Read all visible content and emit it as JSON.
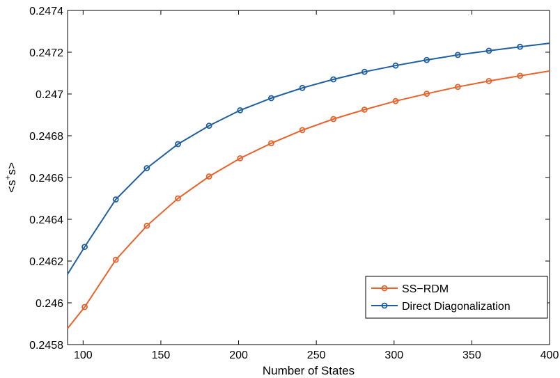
{
  "chart_data": {
    "type": "line",
    "xlabel": "Number of States",
    "ylabel": "<s+s>",
    "xlim": [
      90,
      400
    ],
    "ylim": [
      0.2458,
      0.2474
    ],
    "x_ticks": [
      100,
      150,
      200,
      250,
      300,
      350,
      400
    ],
    "x_tick_labels": [
      "100",
      "150",
      "200",
      "250",
      "300",
      "350",
      "400"
    ],
    "y_ticks": [
      0.2458,
      0.246,
      0.2462,
      0.2464,
      0.2466,
      0.2468,
      0.247,
      0.2472,
      0.2474
    ],
    "y_tick_labels": [
      "0.2458",
      "0.246",
      "0.2462",
      "0.2464",
      "0.2466",
      "0.2468",
      "0.247",
      "0.2472",
      "0.2474"
    ],
    "grid": false,
    "legend_position": "lower-right",
    "series": [
      {
        "name": "SS−RDM",
        "color": "#e8632b",
        "x": [
          90,
          101,
          121,
          141,
          161,
          181,
          201,
          221,
          241,
          261,
          281,
          301,
          321,
          341,
          361,
          381,
          400
        ],
        "y": [
          0.245877,
          0.24598,
          0.246206,
          0.246369,
          0.2465,
          0.246605,
          0.246692,
          0.246764,
          0.246827,
          0.24688,
          0.246925,
          0.246966,
          0.247001,
          0.247034,
          0.247062,
          0.247087,
          0.24711
        ],
        "markers": [
          false,
          true,
          true,
          true,
          true,
          true,
          true,
          true,
          true,
          true,
          true,
          true,
          true,
          true,
          true,
          true,
          false
        ]
      },
      {
        "name": "Direct Diagonalization",
        "color": "#1f5fa0",
        "x": [
          90,
          101,
          121,
          141,
          161,
          181,
          201,
          221,
          241,
          261,
          281,
          301,
          321,
          341,
          361,
          381,
          400
        ],
        "y": [
          0.246137,
          0.246268,
          0.246495,
          0.246645,
          0.24676,
          0.246848,
          0.246922,
          0.24698,
          0.247029,
          0.24707,
          0.247106,
          0.247136,
          0.247163,
          0.247187,
          0.247207,
          0.247226,
          0.247243
        ],
        "markers": [
          false,
          true,
          true,
          true,
          true,
          true,
          true,
          true,
          true,
          true,
          true,
          true,
          true,
          true,
          true,
          true,
          false
        ]
      }
    ]
  }
}
